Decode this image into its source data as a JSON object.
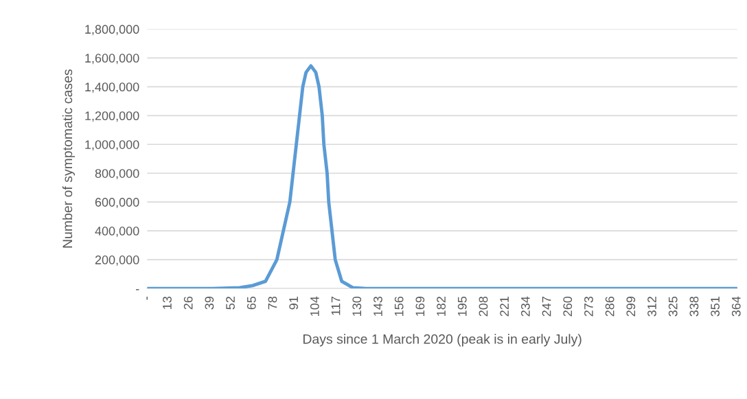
{
  "chart_data": {
    "type": "line",
    "xlabel": "Days since 1 March 2020 (peak is in early July)",
    "ylabel": "Number of symptomatic cases",
    "x": [
      0,
      40,
      57,
      65,
      73,
      80,
      84,
      88,
      90,
      92,
      94,
      96,
      98,
      101,
      104,
      106,
      108,
      109,
      111,
      112,
      114,
      116,
      120,
      127,
      135,
      364
    ],
    "series": [
      {
        "color": "#5b9bd5",
        "values": [
          0,
          0,
          5000,
          20000,
          50000,
          200000,
          400000,
          600000,
          800000,
          1000000,
          1200000,
          1400000,
          1500000,
          1545000,
          1500000,
          1400000,
          1200000,
          1000000,
          800000,
          600000,
          400000,
          200000,
          50000,
          5000,
          0,
          0
        ]
      }
    ],
    "xlim": [
      0,
      364
    ],
    "xticks": [
      {
        "value": 0,
        "label": "-"
      },
      13,
      26,
      39,
      52,
      65,
      78,
      91,
      104,
      117,
      130,
      143,
      156,
      169,
      182,
      195,
      208,
      221,
      234,
      247,
      260,
      273,
      286,
      299,
      312,
      325,
      338,
      351,
      364
    ],
    "ylim": [
      0,
      1800000
    ],
    "yticks": [
      {
        "value": 0,
        "label": "-"
      },
      {
        "value": 200000,
        "label": "200,000"
      },
      {
        "value": 400000,
        "label": "400,000"
      },
      {
        "value": 600000,
        "label": "600,000"
      },
      {
        "value": 800000,
        "label": "800,000"
      },
      {
        "value": 1000000,
        "label": "1,000,000"
      },
      {
        "value": 1200000,
        "label": "1,200,000"
      },
      {
        "value": 1400000,
        "label": "1,400,000"
      },
      {
        "value": 1600000,
        "label": "1,600,000"
      },
      {
        "value": 1800000,
        "label": "1,800,000"
      }
    ],
    "grid": "y",
    "legend": false,
    "marker": "none",
    "line_style": "solid"
  }
}
